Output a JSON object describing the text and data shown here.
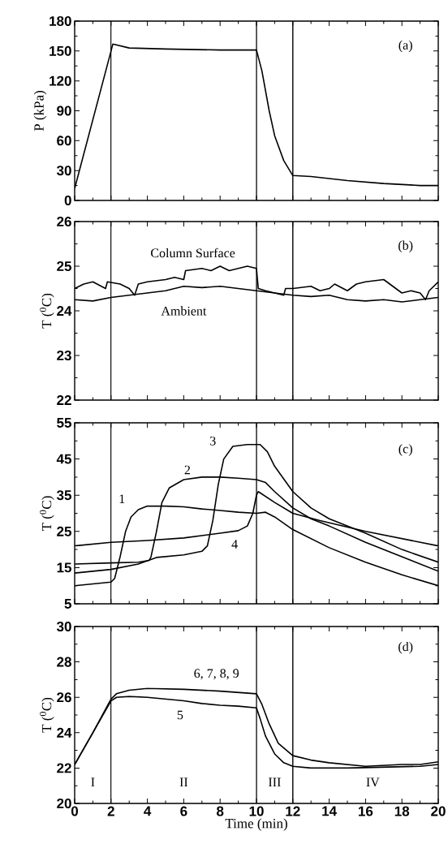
{
  "chart_data": [
    {
      "type": "line",
      "ylabel": "P (kPa)",
      "annotations": [
        "(a)"
      ],
      "xlim": [
        0,
        20
      ],
      "xticks": [
        0,
        2,
        4,
        6,
        8,
        10,
        12,
        14,
        16,
        18,
        20
      ],
      "ylim": [
        0,
        180
      ],
      "yticks": [
        0,
        30,
        60,
        90,
        120,
        150,
        180
      ],
      "tick_labels": "y",
      "ref_lines": [
        {
          "axis": "x",
          "value": 2
        },
        {
          "axis": "x",
          "value": 10
        },
        {
          "axis": "x",
          "value": 12
        }
      ],
      "series": [
        {
          "color": "#000000",
          "x": [
            0,
            2,
            2.1,
            3,
            5,
            8,
            10,
            10.3,
            10.7,
            11,
            11.5,
            12,
            13,
            15,
            17,
            19,
            20
          ],
          "values": [
            12,
            150,
            157,
            153,
            152,
            151,
            151,
            130,
            90,
            65,
            40,
            25,
            24,
            20,
            17,
            15,
            15
          ]
        }
      ]
    },
    {
      "type": "line",
      "ylabel": "T ($^{0}$C)",
      "annotations": [
        "(b)"
      ],
      "xlim": [
        0,
        20
      ],
      "xticks": [
        0,
        2,
        4,
        6,
        8,
        10,
        12,
        14,
        16,
        18,
        20
      ],
      "ylim": [
        22,
        26
      ],
      "yticks": [
        22,
        23,
        24,
        25,
        26
      ],
      "tick_labels": "y",
      "ref_lines": [
        {
          "axis": "x",
          "value": 2
        },
        {
          "axis": "x",
          "value": 10
        },
        {
          "axis": "x",
          "value": 12
        }
      ],
      "series": [
        {
          "name": "Column Surface",
          "color": "#000000",
          "x": [
            0,
            0.5,
            1,
            1.7,
            1.8,
            2.5,
            3,
            3.3,
            3.5,
            4,
            5,
            5.5,
            6,
            6.1,
            7,
            7.5,
            8,
            8.5,
            9,
            9.5,
            10,
            10.1,
            10.5,
            11,
            11.5,
            11.6,
            12,
            13,
            13.5,
            14,
            14.3,
            15,
            15.5,
            16,
            17,
            17.5,
            18,
            18.5,
            19,
            19.3,
            19.5,
            20
          ],
          "values": [
            24.5,
            24.6,
            24.65,
            24.5,
            24.65,
            24.6,
            24.5,
            24.35,
            24.6,
            24.65,
            24.7,
            24.75,
            24.7,
            24.9,
            24.95,
            24.9,
            25.0,
            24.9,
            24.95,
            25.0,
            24.95,
            24.5,
            24.45,
            24.4,
            24.35,
            24.5,
            24.5,
            24.55,
            24.45,
            24.5,
            24.6,
            24.45,
            24.6,
            24.65,
            24.7,
            24.55,
            24.4,
            24.45,
            24.4,
            24.25,
            24.45,
            24.65
          ]
        },
        {
          "name": "Ambient",
          "color": "#000000",
          "x": [
            0,
            1,
            2,
            3,
            4,
            5,
            6,
            7,
            8,
            9,
            10,
            11,
            12,
            13,
            14,
            15,
            16,
            17,
            18,
            19,
            20
          ],
          "values": [
            24.25,
            24.22,
            24.3,
            24.35,
            24.4,
            24.45,
            24.55,
            24.52,
            24.55,
            24.5,
            24.45,
            24.4,
            24.35,
            24.32,
            24.35,
            24.25,
            24.22,
            24.25,
            24.2,
            24.25,
            24.3
          ]
        }
      ]
    },
    {
      "type": "line",
      "ylabel": "T ($^{0}$C)",
      "annotations": [
        "(c)"
      ],
      "xlim": [
        0,
        20
      ],
      "xticks": [
        0,
        2,
        4,
        6,
        8,
        10,
        12,
        14,
        16,
        18,
        20
      ],
      "ylim": [
        5,
        55
      ],
      "yticks": [
        5,
        15,
        25,
        35,
        45,
        55
      ],
      "tick_labels": "y",
      "ref_lines": [
        {
          "axis": "x",
          "value": 2
        },
        {
          "axis": "x",
          "value": 10
        },
        {
          "axis": "x",
          "value": 12
        }
      ],
      "series": [
        {
          "name": "1",
          "color": "#000000",
          "x": [
            0,
            1,
            2,
            2.2,
            2.5,
            2.8,
            3.1,
            3.5,
            4,
            5,
            6,
            7,
            8,
            9,
            10,
            10.5,
            11,
            12,
            14,
            16,
            18,
            20
          ],
          "values": [
            10,
            10.5,
            11,
            12,
            18,
            25,
            29,
            31,
            32,
            32,
            31.8,
            31.2,
            30.8,
            30.3,
            30,
            30.3,
            29,
            25.5,
            20.5,
            16.5,
            13,
            10
          ]
        },
        {
          "name": "2",
          "color": "#000000",
          "x": [
            0,
            2,
            3.5,
            4.1,
            4.2,
            4.5,
            4.8,
            5.2,
            6,
            7,
            8,
            9,
            10,
            10.5,
            11,
            12,
            13,
            14,
            16,
            18,
            20
          ],
          "values": [
            16,
            16.3,
            16.5,
            17,
            18,
            25,
            33,
            37,
            39.3,
            40,
            40,
            39.7,
            39.3,
            38.5,
            36,
            31.5,
            28.5,
            26.5,
            22,
            18,
            14
          ]
        },
        {
          "name": "3",
          "color": "#000000",
          "x": [
            0,
            2,
            3.5,
            4.5,
            6,
            7,
            7.3,
            7.6,
            7.9,
            8.2,
            8.7,
            9.5,
            10.2,
            10.6,
            11,
            12,
            13,
            14,
            16,
            18,
            20
          ],
          "values": [
            13.5,
            14.5,
            16,
            17.8,
            18.5,
            19.5,
            21,
            28,
            38,
            45,
            48.5,
            49,
            49,
            47,
            43,
            36,
            31.5,
            28.5,
            24.5,
            20,
            16.5
          ]
        },
        {
          "name": "4",
          "color": "#000000",
          "x": [
            0,
            2,
            4,
            6,
            8,
            9,
            9.5,
            9.8,
            10,
            10.1,
            11,
            12,
            13.5,
            16,
            18,
            20
          ],
          "values": [
            21,
            22,
            22.5,
            23.2,
            24.5,
            25.2,
            26.5,
            30,
            35,
            36,
            33,
            30,
            28,
            25,
            23,
            21
          ]
        }
      ]
    },
    {
      "type": "line",
      "ylabel": "T ($^{0}$C)",
      "xlabel": "Time (min)",
      "annotations": [
        "(d)",
        "I",
        "II",
        "III",
        "IV"
      ],
      "xlim": [
        0,
        20
      ],
      "xticks": [
        0,
        2,
        4,
        6,
        8,
        10,
        12,
        14,
        16,
        18,
        20
      ],
      "ylim": [
        20,
        30
      ],
      "yticks": [
        20,
        22,
        24,
        26,
        28,
        30
      ],
      "ref_lines": [
        {
          "axis": "x",
          "value": 2
        },
        {
          "axis": "x",
          "value": 10
        },
        {
          "axis": "x",
          "value": 12
        }
      ],
      "series": [
        {
          "name": "5",
          "color": "#000000",
          "x": [
            0,
            1,
            2,
            2.3,
            3,
            4,
            5,
            6,
            7,
            8,
            9,
            10,
            10.2,
            10.5,
            11,
            11.5,
            12,
            13,
            15,
            17,
            19,
            20
          ],
          "values": [
            22.2,
            24,
            25.8,
            26,
            26.05,
            26,
            25.9,
            25.8,
            25.65,
            25.55,
            25.5,
            25.4,
            24.8,
            23.8,
            22.8,
            22.3,
            22.1,
            22.0,
            22.0,
            22.05,
            22.1,
            22.2
          ]
        },
        {
          "name": "6, 7, 8, 9",
          "color": "#000000",
          "x": [
            0,
            1,
            2,
            2.3,
            3,
            4,
            6,
            8,
            10,
            10.3,
            10.7,
            11.2,
            12,
            13,
            14,
            15,
            16,
            17,
            18,
            19,
            20
          ],
          "values": [
            22.2,
            24,
            25.9,
            26.2,
            26.4,
            26.5,
            26.45,
            26.35,
            26.2,
            25.6,
            24.5,
            23.4,
            22.7,
            22.45,
            22.3,
            22.2,
            22.1,
            22.15,
            22.2,
            22.2,
            22.35
          ]
        }
      ]
    }
  ]
}
